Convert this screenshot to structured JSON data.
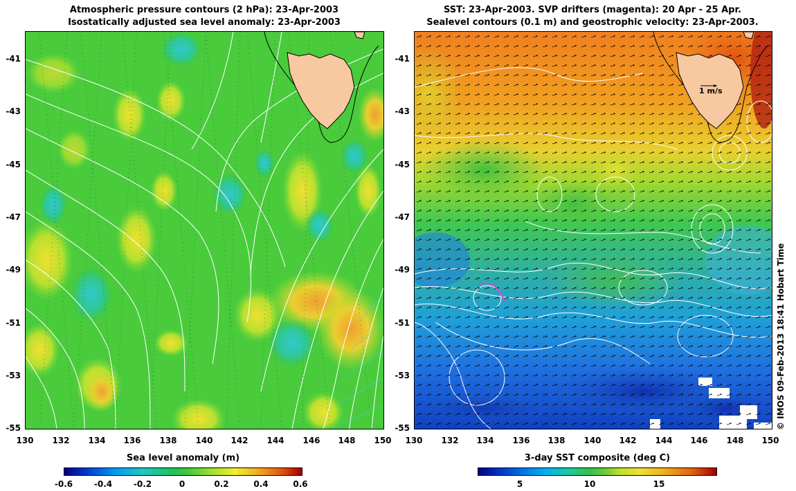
{
  "left_panel": {
    "title_line1": "Atmospheric pressure contours (2 hPa): 23-Apr-2003",
    "title_line2": "Isostatically adjusted sea level anomaly: 23-Apr-2003",
    "colorbar_label": "Sea level anomaly (m)",
    "colorbar_ticks": [
      "-0.6",
      "-0.4",
      "-0.2",
      "0",
      "0.2",
      "0.4",
      "0.6"
    ],
    "colorbar_range": [
      -0.6,
      0.6
    ]
  },
  "right_panel": {
    "title_line1": "SST: 23-Apr-2003. SVP drifters (magenta): 20 Apr - 25 Apr.",
    "title_line2": "Sealevel contours (0.1 m) and geostrophic velocity: 23-Apr-2003.",
    "colorbar_label": "3-day SST composite (deg C)",
    "colorbar_ticks": [
      "5",
      "10",
      "15"
    ],
    "scale_arrow_label": "1 m/s"
  },
  "axes": {
    "x_ticks": [
      "130",
      "132",
      "134",
      "136",
      "138",
      "140",
      "142",
      "144",
      "146",
      "148",
      "150"
    ],
    "y_ticks": [
      "-41",
      "-43",
      "-45",
      "-47",
      "-49",
      "-51",
      "-53",
      "-55"
    ],
    "lon_range": [
      130,
      150
    ],
    "lat_range": [
      -55,
      -40
    ]
  },
  "credit": "© IMOS 09-Feb-2013 18:41 Hobart Time",
  "colors": {
    "land": "#f8c8a0",
    "ssh_base": "#3ecf3e",
    "sst_warm": "#f0a020",
    "sst_cold": "#2060e0"
  }
}
